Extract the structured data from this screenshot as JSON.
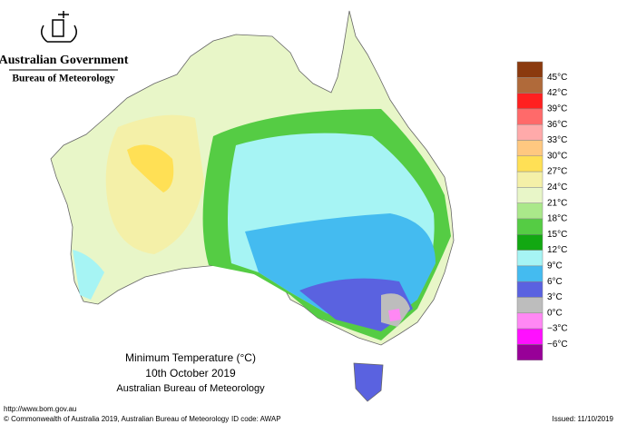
{
  "header": {
    "line1": "Australian Government",
    "line2": "Bureau of Meteorology"
  },
  "legend": {
    "items": [
      {
        "label": "45°C",
        "color": "#8b3a0e"
      },
      {
        "label": "42°C",
        "color": "#b06a3a"
      },
      {
        "label": "39°C",
        "color": "#ff2020"
      },
      {
        "label": "36°C",
        "color": "#ff6a6a"
      },
      {
        "label": "33°C",
        "color": "#ffaaaa"
      },
      {
        "label": "30°C",
        "color": "#ffc880"
      },
      {
        "label": "27°C",
        "color": "#ffe055"
      },
      {
        "label": "24°C",
        "color": "#f4f0a8"
      },
      {
        "label": "21°C",
        "color": "#e8f6c8"
      },
      {
        "label": "18°C",
        "color": "#aae88a"
      },
      {
        "label": "15°C",
        "color": "#55cc44"
      },
      {
        "label": "12°C",
        "color": "#12a812"
      },
      {
        "label": "9°C",
        "color": "#a6f4f4"
      },
      {
        "label": "6°C",
        "color": "#44bbf0"
      },
      {
        "label": "3°C",
        "color": "#5a62e0"
      },
      {
        "label": "0°C",
        "color": "#bdbdbd"
      },
      {
        "label": "−3°C",
        "color": "#ff88f4"
      },
      {
        "label": "−6°C",
        "color": "#ff10ff"
      }
    ],
    "last_color": "#980098"
  },
  "caption": {
    "title": "Minimum Temperature (°C)",
    "date": "10th October 2019",
    "source": "Australian Bureau of Meteorology"
  },
  "footer": {
    "url": "http://www.bom.gov.au",
    "copyright": "© Commonwealth of Australia 2019, Australian Bureau of Meteorology",
    "id_code": "ID code: AWAP",
    "issued": "Issued: 11/10/2019"
  }
}
